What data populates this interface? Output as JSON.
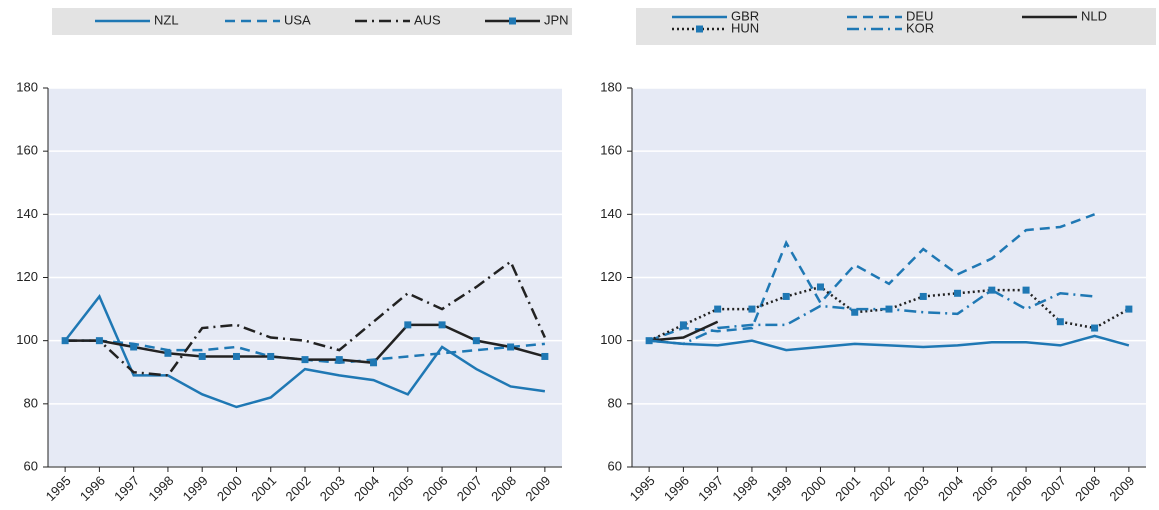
{
  "chart_data": [
    {
      "type": "line",
      "categories": [
        "1995",
        "1996",
        "1997",
        "1998",
        "1999",
        "2000",
        "2001",
        "2002",
        "2003",
        "2004",
        "2005",
        "2006",
        "2007",
        "2008",
        "2009"
      ],
      "ylim": [
        60,
        180
      ],
      "yticks": [
        60,
        80,
        100,
        120,
        140,
        160,
        180
      ],
      "grid": true,
      "series": [
        {
          "name": "NZL",
          "color": "#1f78b4",
          "dash": "solid",
          "values": [
            100,
            114,
            89,
            89,
            83,
            79,
            82,
            91,
            89,
            87.5,
            83,
            98,
            91,
            85.5,
            84
          ]
        },
        {
          "name": "USA",
          "color": "#1f78b4",
          "dash": "dashed",
          "values": [
            100,
            100,
            99,
            97,
            97,
            98,
            95,
            94,
            93,
            94,
            95,
            96,
            97,
            98,
            99
          ]
        },
        {
          "name": "AUS",
          "color": "#222222",
          "dash": "dashdot",
          "values": [
            100,
            100,
            90,
            89,
            104,
            105,
            101,
            100,
            97,
            106,
            115,
            110,
            117,
            125,
            101
          ]
        },
        {
          "name": "JPN",
          "color": "#222222",
          "dash": "solid",
          "marker": "square",
          "marker_color": "#1f78b4",
          "values": [
            100,
            100,
            98,
            96,
            95,
            95,
            95,
            94,
            94,
            93,
            105,
            105,
            100,
            98,
            95
          ]
        }
      ]
    },
    {
      "type": "line",
      "categories": [
        "1995",
        "1996",
        "1997",
        "1998",
        "1999",
        "2000",
        "2001",
        "2002",
        "2003",
        "2004",
        "2005",
        "2006",
        "2007",
        "2008",
        "2009"
      ],
      "ylim": [
        60,
        180
      ],
      "yticks": [
        60,
        80,
        100,
        120,
        140,
        160,
        180
      ],
      "grid": true,
      "series": [
        {
          "name": "GBR",
          "color": "#1f78b4",
          "dash": "solid",
          "values": [
            100,
            99,
            98.5,
            100,
            97,
            98,
            99,
            98.5,
            98,
            98.5,
            99.5,
            99.5,
            98.5,
            101.5,
            98.5
          ]
        },
        {
          "name": "DEU",
          "color": "#1f78b4",
          "dash": "dashed",
          "values": [
            100,
            104,
            103,
            104,
            131,
            112,
            124,
            118,
            129,
            121,
            126,
            135,
            136,
            140,
            null
          ]
        },
        {
          "name": "NLD",
          "color": "#222222",
          "dash": "solid",
          "values": [
            100,
            101,
            106,
            null,
            null,
            null,
            null,
            null,
            null,
            null,
            null,
            null,
            null,
            null,
            null
          ]
        },
        {
          "name": "HUN",
          "color": "#222222",
          "dash": "dotted",
          "marker": "square",
          "marker_color": "#1f78b4",
          "values": [
            100,
            105,
            110,
            110,
            114,
            117,
            109,
            110,
            114,
            115,
            116,
            116,
            106,
            104,
            110
          ]
        },
        {
          "name": "KOR",
          "color": "#1f78b4",
          "dash": "dashdot",
          "values": [
            100,
            99,
            104,
            105,
            105,
            111,
            110,
            110,
            109,
            108.5,
            116,
            110,
            115,
            114,
            null
          ]
        }
      ]
    }
  ]
}
